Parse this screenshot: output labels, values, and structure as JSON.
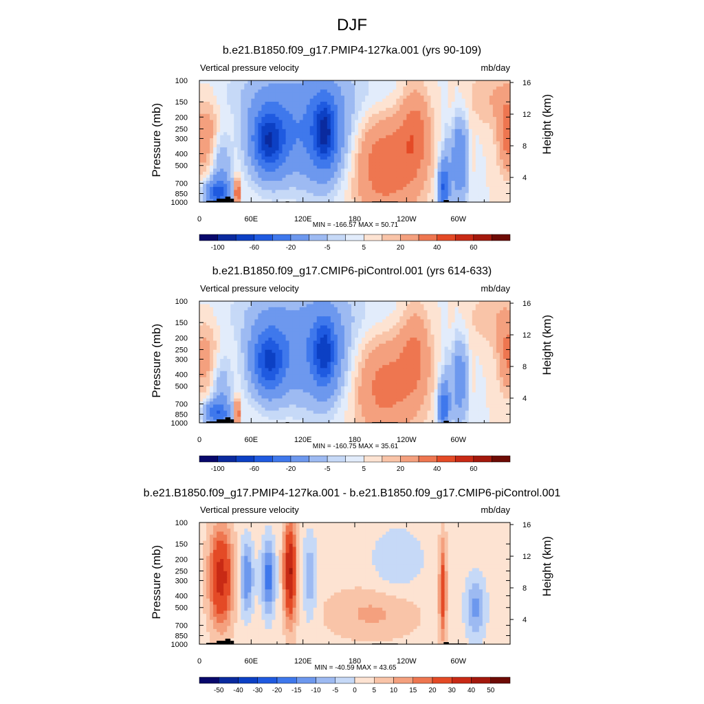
{
  "main_title": "DJF",
  "chart_data": [
    {
      "type": "heatmap",
      "title": "b.e21.B1850.f09_g17.PMIP4-127ka.001 (yrs 90-109)",
      "left_label": "Vertical pressure velocity",
      "right_label": "mb/day",
      "ylabel": "Pressure (mb)",
      "ylabel_right": "Height (km)",
      "x_ticks": [
        "0",
        "60E",
        "120E",
        "180",
        "120W",
        "60W"
      ],
      "x_tick_values": [
        0,
        60,
        120,
        180,
        240,
        300
      ],
      "xlim": [
        0,
        360
      ],
      "y_ticks": [
        "100",
        "150",
        "200",
        "250",
        "300",
        "400",
        "500",
        "700",
        "850",
        "1000"
      ],
      "y_tick_values": [
        100,
        150,
        200,
        250,
        300,
        400,
        500,
        700,
        850,
        1000
      ],
      "ylim": [
        1000,
        100
      ],
      "y_scale": "log",
      "height_ticks": [
        "16",
        "12",
        "8",
        "4"
      ],
      "height_tick_values": [
        16,
        12,
        8,
        4
      ],
      "min_max_text": "MIN = -166.57  MAX =  50.71",
      "colorbar_labels": [
        "-100",
        "-60",
        "-20",
        "-5",
        "5",
        "20",
        "40",
        "60"
      ],
      "colorbar_levels": [
        -120,
        -100,
        -80,
        -60,
        -40,
        -20,
        -10,
        -5,
        0,
        5,
        10,
        20,
        30,
        40,
        50,
        60
      ],
      "colors": [
        "#08086b",
        "#0a2a9e",
        "#0c40c4",
        "#1f5ae0",
        "#3f78ec",
        "#6d98ee",
        "#9dbaf2",
        "#c6d9f7",
        "#e2ecfb",
        "#fde3d2",
        "#f9c4a8",
        "#f4a07e",
        "#ee7650",
        "#e44a26",
        "#c82a15",
        "#a3180c",
        "#6e0b05"
      ],
      "grid": false
    },
    {
      "type": "heatmap",
      "title": "b.e21.B1850.f09_g17.CMIP6-piControl.001 (yrs 614-633)",
      "left_label": "Vertical pressure velocity",
      "right_label": "mb/day",
      "ylabel": "Pressure (mb)",
      "ylabel_right": "Height (km)",
      "x_ticks": [
        "0",
        "60E",
        "120E",
        "180",
        "120W",
        "60W"
      ],
      "x_tick_values": [
        0,
        60,
        120,
        180,
        240,
        300
      ],
      "xlim": [
        0,
        360
      ],
      "y_ticks": [
        "100",
        "150",
        "200",
        "250",
        "300",
        "400",
        "500",
        "700",
        "850",
        "1000"
      ],
      "y_tick_values": [
        100,
        150,
        200,
        250,
        300,
        400,
        500,
        700,
        850,
        1000
      ],
      "ylim": [
        1000,
        100
      ],
      "y_scale": "log",
      "height_ticks": [
        "16",
        "12",
        "8",
        "4"
      ],
      "height_tick_values": [
        16,
        12,
        8,
        4
      ],
      "min_max_text": "MIN = -160.75  MAX =  35.61",
      "colorbar_labels": [
        "-100",
        "-60",
        "-20",
        "-5",
        "5",
        "20",
        "40",
        "60"
      ],
      "colorbar_levels": [
        -120,
        -100,
        -80,
        -60,
        -40,
        -20,
        -10,
        -5,
        0,
        5,
        10,
        20,
        30,
        40,
        50,
        60
      ],
      "colors": [
        "#08086b",
        "#0a2a9e",
        "#0c40c4",
        "#1f5ae0",
        "#3f78ec",
        "#6d98ee",
        "#9dbaf2",
        "#c6d9f7",
        "#e2ecfb",
        "#fde3d2",
        "#f9c4a8",
        "#f4a07e",
        "#ee7650",
        "#e44a26",
        "#c82a15",
        "#a3180c",
        "#6e0b05"
      ],
      "grid": false
    },
    {
      "type": "heatmap",
      "title": "b.e21.B1850.f09_g17.PMIP4-127ka.001 - b.e21.B1850.f09_g17.CMIP6-piControl.001",
      "left_label": "Vertical pressure velocity",
      "right_label": "mb/day",
      "ylabel": "Pressure (mb)",
      "ylabel_right": "Height (km)",
      "x_ticks": [
        "0",
        "60E",
        "120E",
        "180",
        "120W",
        "60W"
      ],
      "x_tick_values": [
        0,
        60,
        120,
        180,
        240,
        300
      ],
      "xlim": [
        0,
        360
      ],
      "y_ticks": [
        "100",
        "150",
        "200",
        "250",
        "300",
        "400",
        "500",
        "700",
        "850",
        "1000"
      ],
      "y_tick_values": [
        100,
        150,
        200,
        250,
        300,
        400,
        500,
        700,
        850,
        1000
      ],
      "ylim": [
        1000,
        100
      ],
      "y_scale": "log",
      "height_ticks": [
        "16",
        "12",
        "8",
        "4"
      ],
      "height_tick_values": [
        16,
        12,
        8,
        4
      ],
      "min_max_text": "MIN = -40.59  MAX =  43.65",
      "colorbar_labels": [
        "-50",
        "-40",
        "-30",
        "-20",
        "-15",
        "-10",
        "-5",
        "0",
        "5",
        "10",
        "15",
        "20",
        "30",
        "40",
        "50"
      ],
      "colorbar_levels": [
        -50,
        -40,
        -30,
        -20,
        -15,
        -10,
        -5,
        0,
        5,
        10,
        15,
        20,
        30,
        40,
        50
      ],
      "colors": [
        "#08086b",
        "#0a2a9e",
        "#0c40c4",
        "#1f5ae0",
        "#3f78ec",
        "#6d98ee",
        "#9dbaf2",
        "#c6d9f7",
        "#fde3d2",
        "#f9c4a8",
        "#f4a07e",
        "#ee7650",
        "#e44a26",
        "#c82a15",
        "#a3180c",
        "#6e0b05"
      ],
      "grid": false
    }
  ]
}
